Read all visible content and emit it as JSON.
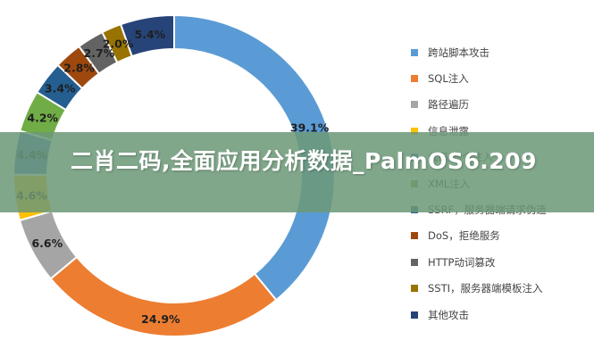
{
  "chart_data": {
    "type": "pie",
    "donut": true,
    "legend_position": "right",
    "categories": [
      "跨站脚本攻击",
      "SQL注入",
      "路径遍历",
      "信息泄露",
      "代码/命令注入",
      "XML注入",
      "SSRF，服务器端请求伪造",
      "DoS，拒绝服务",
      "HTTP动词篡改",
      "SSTI，服务器端模板注入",
      "其他攻击"
    ],
    "values": [
      39.1,
      24.9,
      6.6,
      4.6,
      4.4,
      4.2,
      3.4,
      2.8,
      2.7,
      2.0,
      5.4
    ],
    "value_labels": [
      "39.1%",
      "24.9%",
      "6.6%",
      "4.6%",
      "4.4%",
      "4.2%",
      "3.4%",
      "2.8%",
      "2.7%",
      "2.0%",
      "5.4%"
    ],
    "colors": [
      "#5b9bd5",
      "#ed7d31",
      "#a5a5a5",
      "#ffc000",
      "#4472c4",
      "#70ad47",
      "#255e91",
      "#9e480e",
      "#636363",
      "#997300",
      "#264478"
    ]
  },
  "legend": {
    "items": [
      "跨站脚本攻击",
      "SQL注入",
      "路径遍历",
      "信息泄露",
      "代码/命令注入",
      "XML注入",
      "SSRF，服务器端请求伪造",
      "DoS，拒绝服务",
      "HTTP动词篡改",
      "SSTI，服务器端模板注入",
      "其他攻击"
    ]
  },
  "banner": {
    "text": "二肖二码,全面应用分析数据_PalmOS6.209"
  }
}
